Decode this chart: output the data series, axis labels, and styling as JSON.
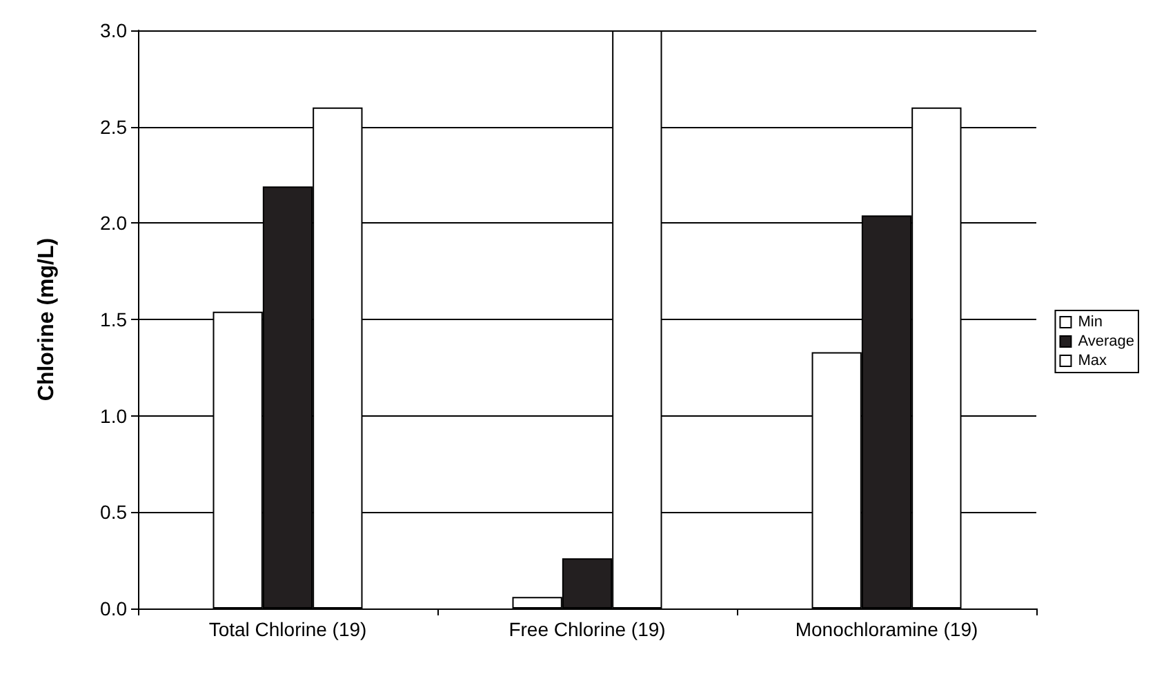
{
  "chart_data": {
    "type": "bar",
    "ylabel": "Chlorine (mg/L)",
    "categories": [
      "Total Chlorine (19)",
      "Free Chlorine (19)",
      "Monochloramine (19)"
    ],
    "series": [
      {
        "name": "Min",
        "color": "#ffffff",
        "values": [
          1.54,
          0.06,
          1.33
        ]
      },
      {
        "name": "Average",
        "color": "#231f20",
        "values": [
          2.19,
          0.26,
          2.04
        ]
      },
      {
        "name": "Max",
        "color": "#ffffff",
        "values": [
          2.6,
          3.0,
          2.6
        ]
      }
    ],
    "ylim": [
      0,
      3
    ],
    "yticks": [
      {
        "value": 0,
        "label": "0.0"
      },
      0.5,
      {
        "value": 1,
        "label": "1.0"
      },
      1.5,
      {
        "value": 2,
        "label": "2.0"
      },
      2.5,
      {
        "value": 3,
        "label": "3.0"
      }
    ],
    "grid": "y",
    "legend": "right"
  }
}
